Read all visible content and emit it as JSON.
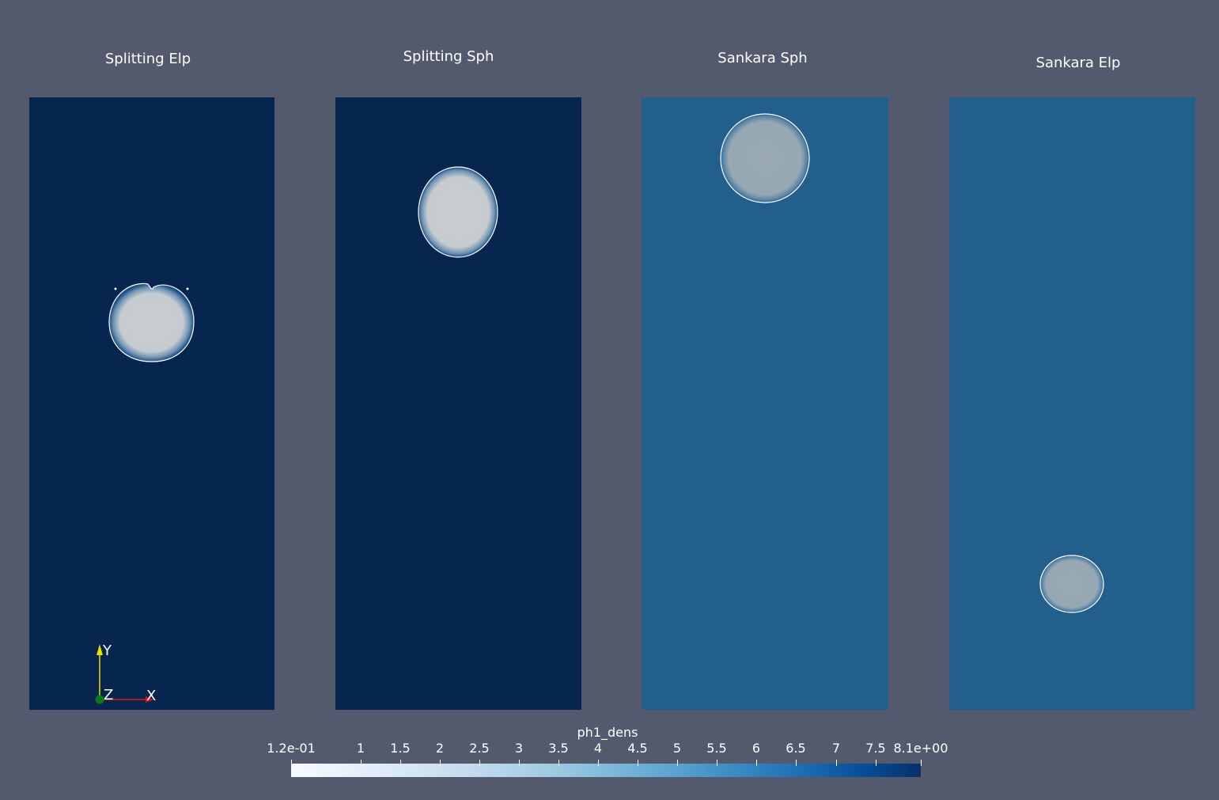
{
  "panels": [
    {
      "title": "Splitting Elp",
      "background": "#062650"
    },
    {
      "title": "Splitting Sph",
      "background": "#062650"
    },
    {
      "title": "Sankara Sph",
      "background": "#235f8b"
    },
    {
      "title": "Sankara Elp",
      "background": "#235f8b"
    }
  ],
  "colorbar": {
    "title": "ph1_dens",
    "ticks": [
      "1.2e-01",
      "1",
      "1.5",
      "2",
      "2.5",
      "3",
      "3.5",
      "4",
      "4.5",
      "5",
      "5.5",
      "6",
      "6.5",
      "7",
      "7.5",
      "8.1e+00"
    ],
    "colors": [
      "#f7fbff",
      "#08306b"
    ]
  },
  "orientation_axes": {
    "y_label": "Y",
    "x_label": "X",
    "z_label": "Z",
    "colors": {
      "x": "#e0141e",
      "y": "#e8e000",
      "z": "#0a7a1e"
    }
  },
  "bubble_color": "#c9cdd0"
}
